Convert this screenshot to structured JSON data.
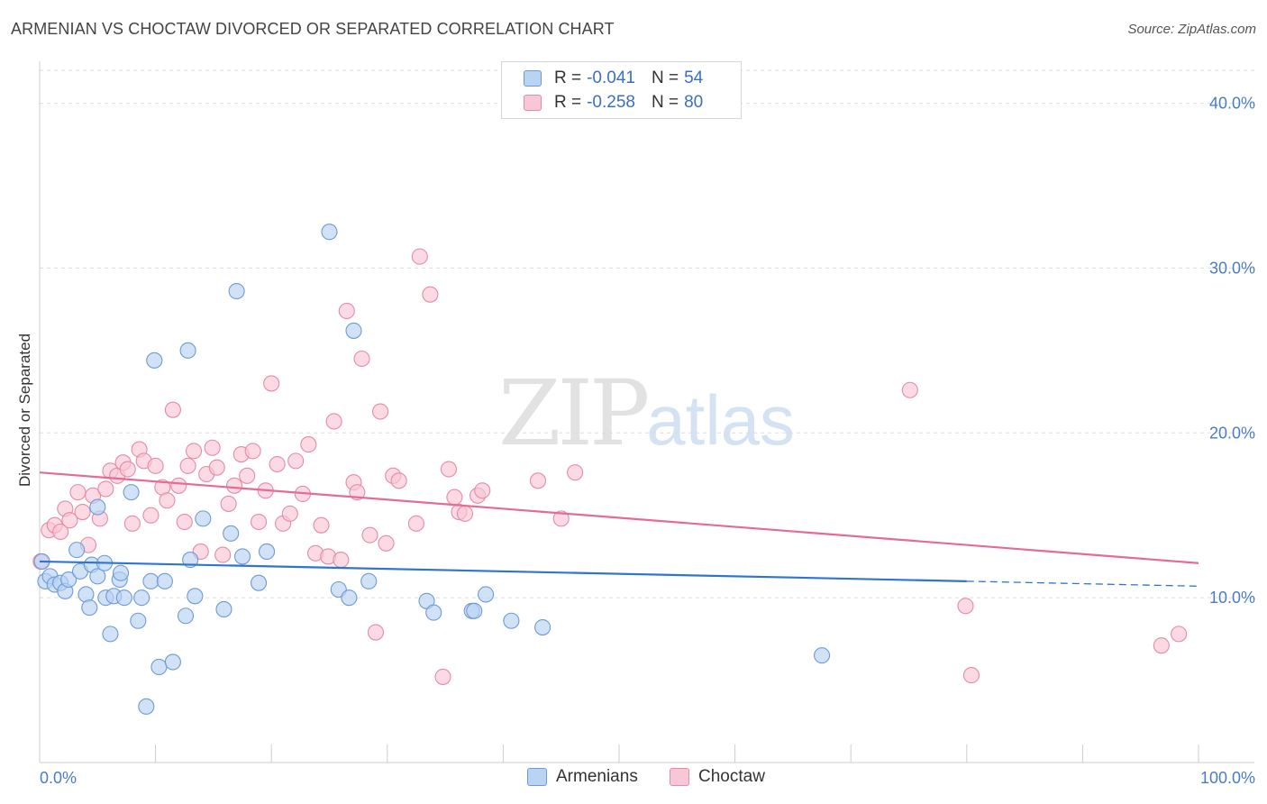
{
  "title": "ARMENIAN VS CHOCTAW DIVORCED OR SEPARATED CORRELATION CHART",
  "source": "Source: ZipAtlas.com",
  "watermark": {
    "zip": "ZIP",
    "atlas": "atlas"
  },
  "legend": {
    "armenians": {
      "r_label": "R =",
      "r_value": "-0.041",
      "n_label": "N =",
      "n_value": "54"
    },
    "choctaw": {
      "r_label": "R =",
      "r_value": "-0.258",
      "n_label": "N =",
      "n_value": "80"
    }
  },
  "bottom_legend": {
    "armenians": "Armenians",
    "choctaw": "Choctaw"
  },
  "colors": {
    "armenians_fill": "#b9d3f3",
    "armenians_stroke": "#6d9ad6",
    "armenians_line": "#2f74d0",
    "choctaw_fill": "#f9c6d6",
    "choctaw_stroke": "#e58aa8",
    "choctaw_line": "#e56b94",
    "grid": "#dddddd",
    "axis": "#cccccc"
  },
  "chart_data": {
    "type": "scatter",
    "title": "ARMENIAN VS CHOCTAW DIVORCED OR SEPARATED CORRELATION CHART",
    "xlabel": "",
    "ylabel": "Divorced or Separated",
    "xlim": [
      0,
      100
    ],
    "ylim": [
      0,
      42
    ],
    "x_tick_labels": [
      "0.0%",
      "100.0%"
    ],
    "y_ticks": [
      10,
      20,
      30,
      40
    ],
    "y_tick_labels": [
      "10.0%",
      "20.0%",
      "30.0%",
      "40.0%"
    ],
    "grid": true,
    "legend_position": "top-center",
    "series": [
      {
        "name": "Armenians",
        "trend": {
          "x0": 0,
          "y0": 12.2,
          "x1": 80,
          "y1": 11.0,
          "dash_x1": 100,
          "dash_y1": 10.7
        },
        "points": [
          [
            0.2,
            12.2
          ],
          [
            0.5,
            11.0
          ],
          [
            0.9,
            11.3
          ],
          [
            1.3,
            10.8
          ],
          [
            1.8,
            10.9
          ],
          [
            2.2,
            10.4
          ],
          [
            2.5,
            11.1
          ],
          [
            3.5,
            11.6
          ],
          [
            3.2,
            12.9
          ],
          [
            4.0,
            10.2
          ],
          [
            4.3,
            9.4
          ],
          [
            4.5,
            12.0
          ],
          [
            5.0,
            11.3
          ],
          [
            5.0,
            15.5
          ],
          [
            5.6,
            12.1
          ],
          [
            5.7,
            10.0
          ],
          [
            6.1,
            7.8
          ],
          [
            6.4,
            10.1
          ],
          [
            6.9,
            11.1
          ],
          [
            7.0,
            11.5
          ],
          [
            7.3,
            10.0
          ],
          [
            7.9,
            16.4
          ],
          [
            8.5,
            8.6
          ],
          [
            8.8,
            10.0
          ],
          [
            9.2,
            3.4
          ],
          [
            9.6,
            11.0
          ],
          [
            9.9,
            24.4
          ],
          [
            10.3,
            5.8
          ],
          [
            10.8,
            11.0
          ],
          [
            11.5,
            6.1
          ],
          [
            12.6,
            8.9
          ],
          [
            12.8,
            25.0
          ],
          [
            13.0,
            12.3
          ],
          [
            13.4,
            10.1
          ],
          [
            14.1,
            14.8
          ],
          [
            15.9,
            9.3
          ],
          [
            16.5,
            13.9
          ],
          [
            17.0,
            28.6
          ],
          [
            17.5,
            12.5
          ],
          [
            18.9,
            10.9
          ],
          [
            19.6,
            12.8
          ],
          [
            25.0,
            32.2
          ],
          [
            25.8,
            10.5
          ],
          [
            26.7,
            10.0
          ],
          [
            27.1,
            26.2
          ],
          [
            28.4,
            11.0
          ],
          [
            33.4,
            9.8
          ],
          [
            34.0,
            9.1
          ],
          [
            37.3,
            9.2
          ],
          [
            37.5,
            9.2
          ],
          [
            38.5,
            10.2
          ],
          [
            40.7,
            8.6
          ],
          [
            43.4,
            8.2
          ],
          [
            67.5,
            6.5
          ]
        ]
      },
      {
        "name": "Choctaw",
        "trend": {
          "x0": 0,
          "y0": 17.6,
          "x1": 100,
          "y1": 12.1
        },
        "points": [
          [
            0.1,
            12.2
          ],
          [
            0.8,
            14.1
          ],
          [
            1.3,
            14.4
          ],
          [
            1.8,
            14.0
          ],
          [
            2.2,
            15.4
          ],
          [
            2.6,
            14.7
          ],
          [
            3.3,
            16.4
          ],
          [
            3.7,
            15.2
          ],
          [
            4.2,
            13.2
          ],
          [
            4.6,
            16.2
          ],
          [
            5.2,
            14.8
          ],
          [
            5.7,
            16.6
          ],
          [
            6.1,
            17.7
          ],
          [
            6.7,
            17.4
          ],
          [
            7.2,
            18.2
          ],
          [
            7.6,
            17.8
          ],
          [
            8.0,
            14.5
          ],
          [
            8.6,
            19.0
          ],
          [
            9.0,
            18.3
          ],
          [
            9.6,
            15.0
          ],
          [
            10.0,
            18.0
          ],
          [
            10.6,
            16.7
          ],
          [
            11.0,
            15.9
          ],
          [
            11.5,
            21.4
          ],
          [
            12.0,
            16.8
          ],
          [
            12.5,
            14.6
          ],
          [
            12.8,
            18.0
          ],
          [
            13.3,
            18.9
          ],
          [
            13.9,
            12.8
          ],
          [
            14.4,
            17.5
          ],
          [
            14.9,
            19.1
          ],
          [
            15.3,
            17.9
          ],
          [
            15.8,
            12.6
          ],
          [
            16.3,
            15.7
          ],
          [
            16.8,
            16.8
          ],
          [
            17.4,
            18.7
          ],
          [
            17.9,
            17.4
          ],
          [
            18.4,
            18.9
          ],
          [
            18.9,
            14.6
          ],
          [
            19.5,
            16.5
          ],
          [
            20.0,
            23.0
          ],
          [
            20.5,
            18.1
          ],
          [
            21.0,
            14.5
          ],
          [
            21.6,
            15.1
          ],
          [
            22.1,
            18.3
          ],
          [
            22.7,
            16.3
          ],
          [
            23.2,
            19.3
          ],
          [
            23.8,
            12.7
          ],
          [
            24.3,
            14.4
          ],
          [
            24.9,
            12.5
          ],
          [
            25.4,
            20.7
          ],
          [
            26.0,
            12.3
          ],
          [
            26.5,
            27.4
          ],
          [
            27.1,
            17.0
          ],
          [
            27.4,
            16.4
          ],
          [
            27.8,
            24.5
          ],
          [
            28.5,
            13.8
          ],
          [
            29.0,
            7.9
          ],
          [
            29.4,
            21.3
          ],
          [
            29.9,
            13.3
          ],
          [
            30.5,
            17.4
          ],
          [
            31.0,
            17.1
          ],
          [
            32.5,
            14.5
          ],
          [
            32.8,
            30.7
          ],
          [
            33.7,
            28.4
          ],
          [
            34.8,
            5.2
          ],
          [
            35.3,
            17.8
          ],
          [
            35.8,
            16.1
          ],
          [
            36.2,
            15.2
          ],
          [
            36.7,
            15.1
          ],
          [
            37.8,
            16.2
          ],
          [
            38.2,
            16.5
          ],
          [
            43.0,
            17.1
          ],
          [
            45.0,
            14.8
          ],
          [
            46.2,
            17.6
          ],
          [
            75.1,
            22.6
          ],
          [
            79.9,
            9.5
          ],
          [
            80.4,
            5.3
          ],
          [
            96.8,
            7.1
          ],
          [
            98.3,
            7.8
          ]
        ]
      }
    ]
  }
}
